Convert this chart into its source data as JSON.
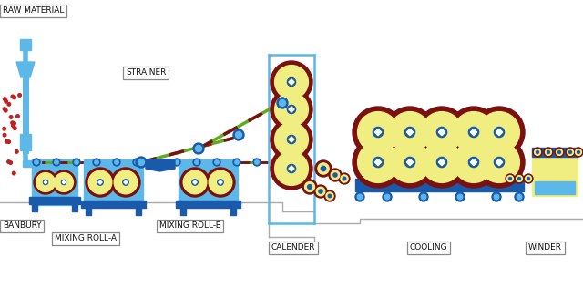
{
  "bg_color": "#ffffff",
  "blue_light": "#5bb8e8",
  "blue_mid": "#4a90c8",
  "blue_dark": "#1a5aaa",
  "yellow": "#f0ee80",
  "dark_red": "#7a1010",
  "green_line": "#60aa20",
  "gray_floor": "#aaaaaa",
  "label_box_edge": "#888888",
  "labels": {
    "raw_material": "RAW MATERIAL",
    "banbury": "BANBURY",
    "mixing_roll_a": "MIXING ROLL-A",
    "strainer": "STRAINER",
    "mixing_roll_b": "MIXING ROLL-B",
    "calender": "CALENDER",
    "cooling": "COOLING",
    "winder": "WINDER"
  }
}
